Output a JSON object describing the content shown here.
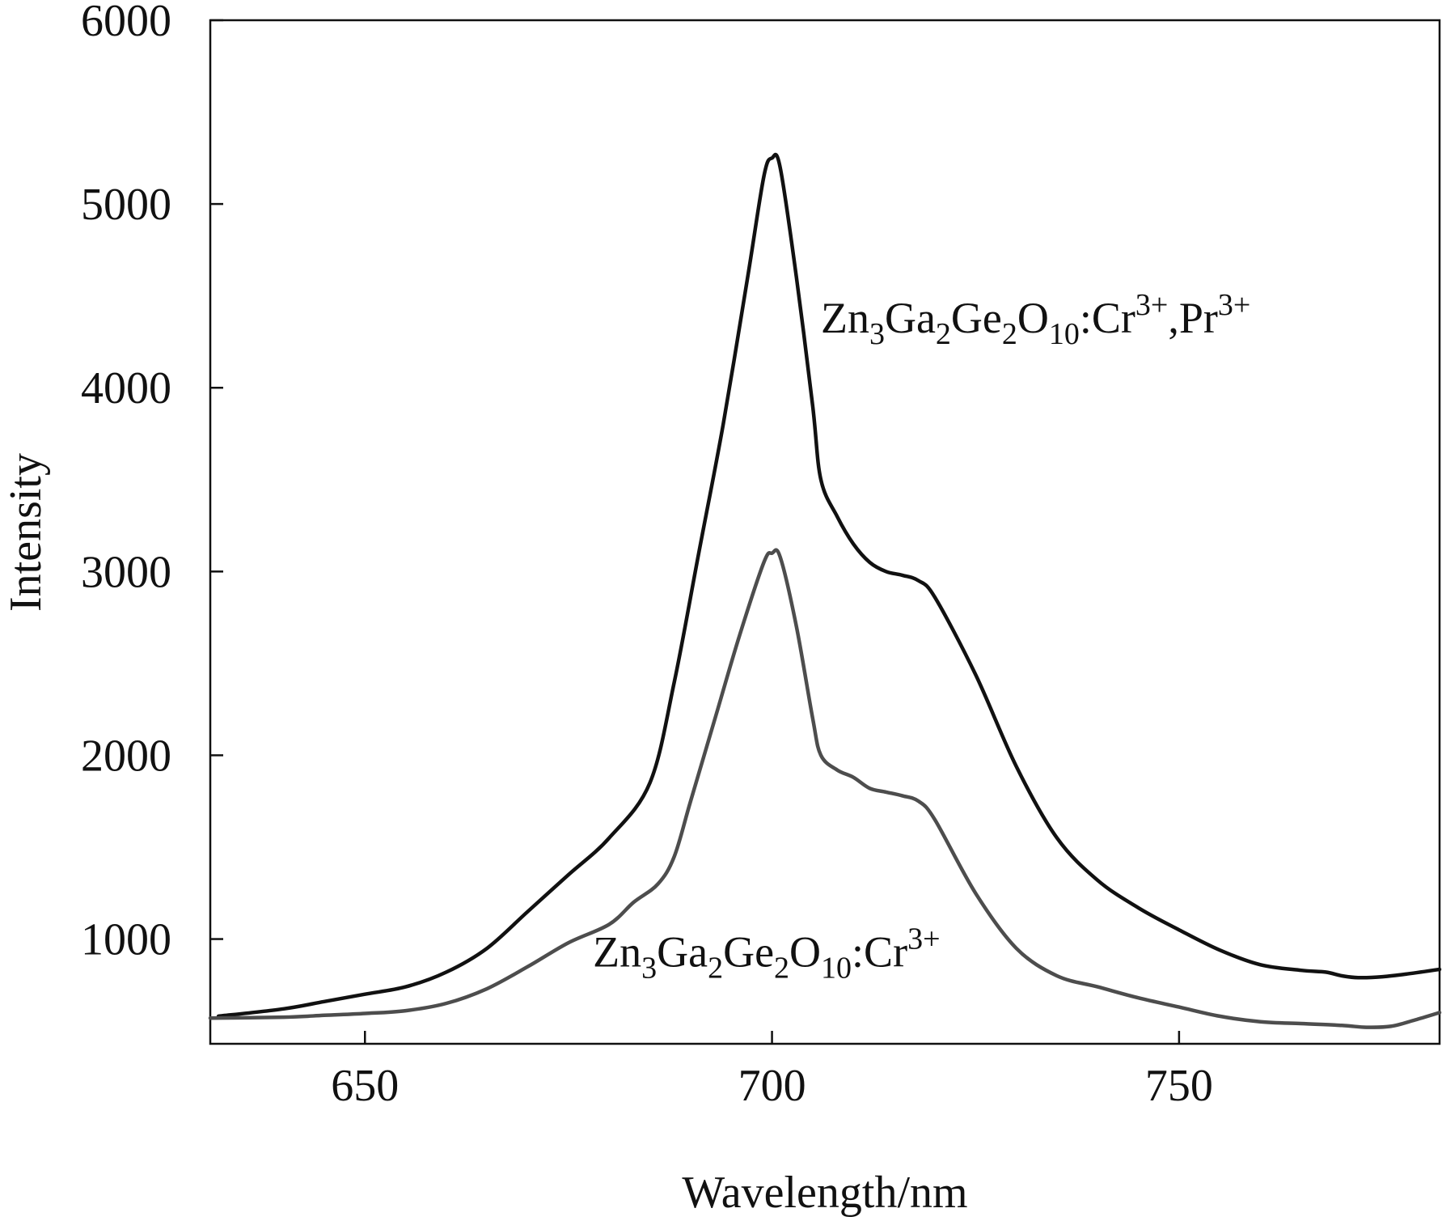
{
  "chart_data": {
    "type": "line",
    "title": "",
    "xlabel": "Wavelength/nm",
    "ylabel": "Intensity",
    "xlim": [
      631,
      782
    ],
    "ylim": [
      430,
      6000
    ],
    "x_ticks": [
      650,
      700,
      750
    ],
    "y_ticks": [
      1000,
      2000,
      3000,
      4000,
      5000,
      6000
    ],
    "grid": false,
    "legend": "none; series labelled directly on plot",
    "series": [
      {
        "name": "Zn3Ga2Ge2O10:Cr3+,Pr3+",
        "color": "#111111",
        "label_parts": [
          {
            "t": "Zn"
          },
          {
            "t": "3",
            "s": "sub"
          },
          {
            "t": "Ga"
          },
          {
            "t": "2",
            "s": "sub"
          },
          {
            "t": "Ge"
          },
          {
            "t": "2",
            "s": "sub"
          },
          {
            "t": "O"
          },
          {
            "t": "10",
            "s": "sub"
          },
          {
            "t": ":Cr"
          },
          {
            "t": "3+",
            "s": "sup"
          },
          {
            "t": ",Pr"
          },
          {
            "t": "3+",
            "s": "sup"
          }
        ],
        "label_anchor": [
          706,
          4300
        ],
        "x": [
          632,
          640,
          645,
          650,
          655,
          660,
          665,
          670,
          675,
          680,
          685,
          688,
          691,
          694,
          697,
          699,
          700,
          701,
          703,
          705,
          706,
          708,
          710,
          712,
          714,
          716,
          718,
          720,
          725,
          730,
          735,
          740,
          745,
          750,
          755,
          760,
          765,
          768,
          770,
          772,
          775,
          778,
          782
        ],
        "y": [
          580,
          620,
          660,
          700,
          740,
          820,
          950,
          1150,
          1350,
          1550,
          1850,
          2400,
          3100,
          3800,
          4600,
          5150,
          5250,
          5200,
          4600,
          3900,
          3500,
          3300,
          3150,
          3050,
          3000,
          2980,
          2950,
          2860,
          2440,
          1940,
          1550,
          1320,
          1170,
          1050,
          940,
          860,
          830,
          820,
          800,
          790,
          795,
          810,
          835
        ]
      },
      {
        "name": "Zn3Ga2Ge2O10:Cr3+",
        "color": "#4d4d4d",
        "label_parts": [
          {
            "t": "Zn"
          },
          {
            "t": "3",
            "s": "sub"
          },
          {
            "t": "Ga"
          },
          {
            "t": "2",
            "s": "sub"
          },
          {
            "t": "Ge"
          },
          {
            "t": "2",
            "s": "sub"
          },
          {
            "t": "O"
          },
          {
            "t": "10",
            "s": "sub"
          },
          {
            "t": ":Cr"
          },
          {
            "t": "3+",
            "s": "sup"
          }
        ],
        "label_anchor": [
          678,
          850
        ],
        "x": [
          631,
          640,
          645,
          650,
          655,
          660,
          665,
          670,
          675,
          680,
          683,
          686,
          688,
          690,
          693,
          696,
          699,
          700,
          701,
          703,
          705,
          706,
          708,
          710,
          712,
          714,
          716,
          718,
          720,
          725,
          730,
          735,
          740,
          745,
          750,
          755,
          760,
          765,
          770,
          773,
          776,
          779,
          782
        ],
        "y": [
          570,
          575,
          585,
          595,
          610,
          650,
          730,
          850,
          980,
          1080,
          1200,
          1300,
          1450,
          1750,
          2200,
          2650,
          3050,
          3100,
          3080,
          2700,
          2200,
          2000,
          1920,
          1880,
          1820,
          1800,
          1780,
          1750,
          1650,
          1250,
          950,
          800,
          740,
          680,
          630,
          580,
          550,
          540,
          530,
          520,
          525,
          560,
          600
        ]
      }
    ]
  }
}
